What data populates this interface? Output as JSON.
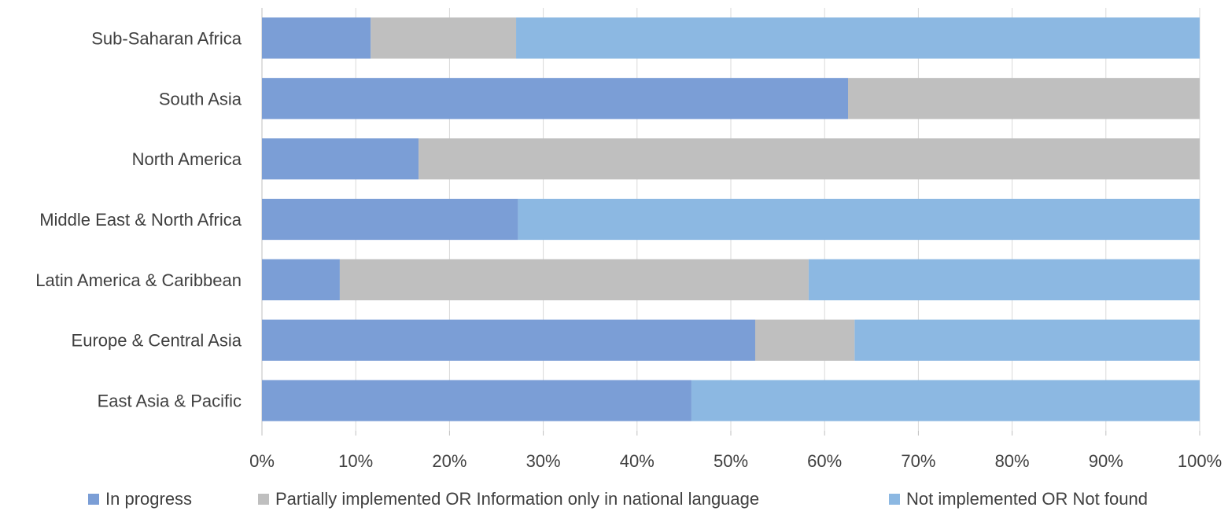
{
  "chart_data": {
    "type": "bar",
    "orientation": "horizontal",
    "stacked": true,
    "categories": [
      "Sub-Saharan Africa",
      "South Asia",
      "North America",
      "Middle East & North Africa",
      "Latin America & Caribbean",
      "Europe & Central Asia",
      "East Asia & Pacific"
    ],
    "series": [
      {
        "name": "In progress",
        "color": "#7b9ed6",
        "values": [
          11.6,
          62.5,
          16.7,
          27.3,
          8.3,
          52.6,
          45.8
        ]
      },
      {
        "name": "Partially implemented OR Information only in national language",
        "color": "#bfbfbf",
        "values": [
          15.5,
          37.5,
          83.3,
          0,
          50.0,
          10.6,
          0
        ]
      },
      {
        "name": "Not implemented OR Not found",
        "color": "#8cb8e2",
        "values": [
          72.9,
          0,
          0,
          72.7,
          41.7,
          36.8,
          54.2
        ]
      }
    ],
    "xlim": [
      0,
      100
    ],
    "xticks": [
      "0%",
      "10%",
      "20%",
      "30%",
      "40%",
      "50%",
      "60%",
      "70%",
      "80%",
      "90%",
      "100%"
    ],
    "grid": true,
    "legend_position": "bottom",
    "title": "",
    "xlabel": "",
    "ylabel": ""
  }
}
